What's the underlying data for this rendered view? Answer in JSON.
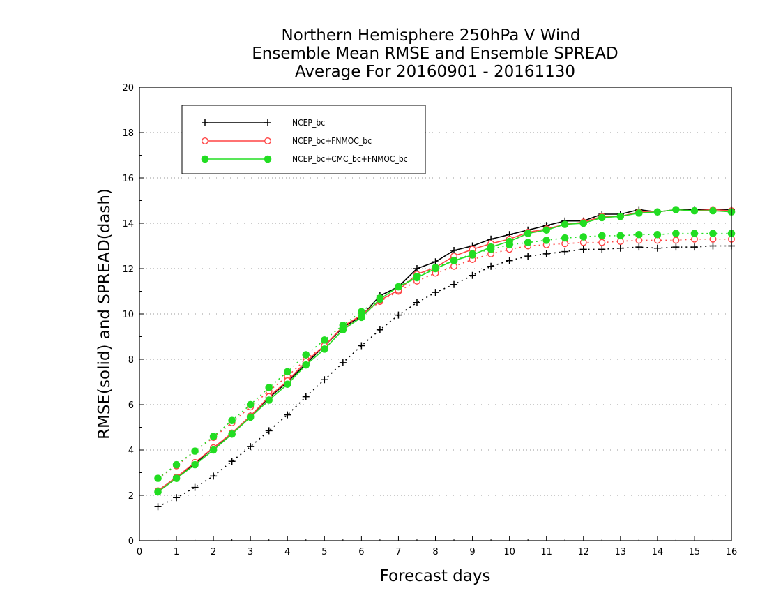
{
  "chart_data": {
    "type": "line",
    "title": [
      "Northern Hemisphere 250hPa V Wind",
      "Ensemble Mean RMSE and Ensemble SPREAD",
      "Average For 20160901 - 20161130"
    ],
    "xlabel": "Forecast days",
    "ylabel": "RMSE(solid) and SPREAD(dash)",
    "xlim": [
      0,
      16
    ],
    "ylim": [
      0,
      20
    ],
    "xticks": [
      0,
      1,
      2,
      3,
      4,
      5,
      6,
      7,
      8,
      9,
      10,
      11,
      12,
      13,
      14,
      15,
      16
    ],
    "yticks": [
      0,
      2,
      4,
      6,
      8,
      10,
      12,
      14,
      16,
      18,
      20
    ],
    "grid": "horizontal-dotted",
    "legend_position": "top-left",
    "x": [
      0.5,
      1,
      1.5,
      2,
      2.5,
      3,
      3.5,
      4,
      4.5,
      5,
      5.5,
      6,
      6.5,
      7,
      7.5,
      8,
      8.5,
      9,
      9.5,
      10,
      10.5,
      11,
      11.5,
      12,
      12.5,
      13,
      13.5,
      14,
      14.5,
      15,
      15.5,
      16
    ],
    "series": [
      {
        "name": "NCEP_bc",
        "color": "#000000",
        "marker": "plus",
        "rmse": [
          2.2,
          2.8,
          3.4,
          4.1,
          4.7,
          5.5,
          6.3,
          7.0,
          7.8,
          8.6,
          9.4,
          9.9,
          10.8,
          11.2,
          12.0,
          12.3,
          12.8,
          13.0,
          13.3,
          13.5,
          13.7,
          13.9,
          14.1,
          14.1,
          14.4,
          14.4,
          14.6,
          14.5,
          14.6,
          14.6,
          14.6,
          14.6
        ],
        "spread": [
          1.5,
          1.9,
          2.35,
          2.85,
          3.5,
          4.15,
          4.85,
          5.55,
          6.35,
          7.1,
          7.85,
          8.6,
          9.3,
          9.95,
          10.5,
          10.95,
          11.3,
          11.7,
          12.1,
          12.35,
          12.55,
          12.65,
          12.75,
          12.85,
          12.85,
          12.9,
          12.95,
          12.9,
          12.95,
          12.95,
          13.0,
          13.0
        ]
      },
      {
        "name": "NCEP_bc+FNMOC_bc",
        "color": "#ff4444",
        "marker": "open-circle",
        "rmse": [
          2.2,
          2.8,
          3.45,
          4.1,
          4.75,
          5.5,
          6.35,
          7.05,
          7.9,
          8.6,
          9.45,
          9.95,
          10.6,
          11.05,
          11.75,
          12.05,
          12.55,
          12.85,
          13.1,
          13.3,
          13.6,
          13.75,
          13.95,
          14.05,
          14.3,
          14.3,
          14.5,
          14.5,
          14.6,
          14.55,
          14.6,
          14.55
        ],
        "spread": [
          2.75,
          3.3,
          3.95,
          4.55,
          5.2,
          5.9,
          6.6,
          7.25,
          8.0,
          8.6,
          9.35,
          9.9,
          10.55,
          11.0,
          11.45,
          11.8,
          12.1,
          12.4,
          12.65,
          12.85,
          13.0,
          13.05,
          13.1,
          13.15,
          13.15,
          13.2,
          13.25,
          13.25,
          13.25,
          13.3,
          13.3,
          13.3
        ]
      },
      {
        "name": "NCEP_bc+CMC_bc+FNMOC_bc",
        "color": "#22dd22",
        "marker": "filled-circle",
        "rmse": [
          2.15,
          2.75,
          3.35,
          4.0,
          4.7,
          5.45,
          6.2,
          6.9,
          7.75,
          8.45,
          9.3,
          9.85,
          10.65,
          11.2,
          11.6,
          12.0,
          12.35,
          12.6,
          12.95,
          13.2,
          13.55,
          13.7,
          13.95,
          14.0,
          14.25,
          14.3,
          14.45,
          14.5,
          14.6,
          14.55,
          14.55,
          14.5
        ],
        "spread": [
          2.75,
          3.35,
          3.95,
          4.6,
          5.3,
          6.0,
          6.75,
          7.45,
          8.2,
          8.85,
          9.5,
          10.1,
          10.7,
          11.2,
          11.65,
          12.05,
          12.35,
          12.65,
          12.85,
          13.05,
          13.15,
          13.25,
          13.35,
          13.4,
          13.45,
          13.45,
          13.5,
          13.5,
          13.55,
          13.55,
          13.55,
          13.55
        ]
      }
    ]
  }
}
